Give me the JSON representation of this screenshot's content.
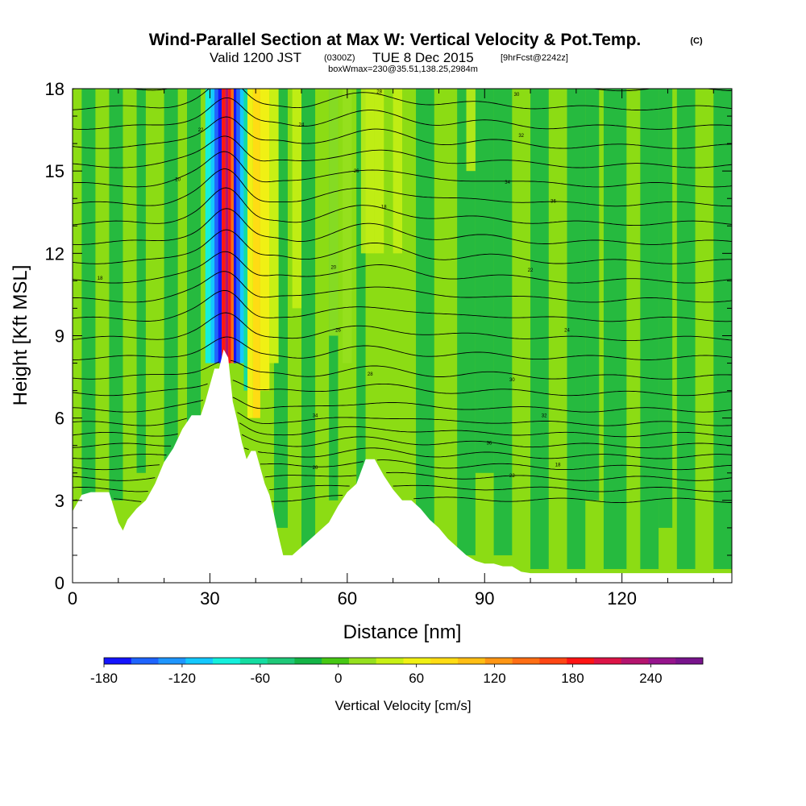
{
  "header": {
    "title": "Wind-Parallel Section at Max W: Vertical Velocity & Pot.Temp.",
    "copyright": "(C)",
    "valid_prefix": "Valid 1200 JST",
    "valid_utc": "(0300Z)",
    "valid_date": "TUE 8 Dec 2015",
    "forecast": "[9hrFcst@2242z]",
    "boxwmax": "boxWmax=230@35.51,138.25,2984m"
  },
  "chart_data": {
    "type": "heatmap",
    "title": "Wind-Parallel Section at Max W: Vertical Velocity & Pot.Temp.",
    "xlabel": "Distance [nm]",
    "ylabel": "Height [Kft MSL]",
    "xlim": [
      0,
      144
    ],
    "ylim": [
      0,
      18
    ],
    "x_ticks": [
      0,
      30,
      60,
      90,
      120
    ],
    "y_ticks": [
      0,
      3,
      6,
      9,
      12,
      15,
      18
    ],
    "colorbar": {
      "label": "Vertical Velocity [cm/s]",
      "min": -180,
      "max": 260,
      "step": 20,
      "tick_values": [
        -180,
        -120,
        -60,
        0,
        60,
        120,
        180,
        240
      ],
      "tick_labels": [
        "-180",
        "-120",
        "-60",
        "0",
        "60",
        "120",
        "180",
        "240"
      ],
      "colors": [
        "#1414ff",
        "#1e64ff",
        "#1e96ff",
        "#14c8ff",
        "#14f0dc",
        "#14dca0",
        "#1ec878",
        "#14b446",
        "#46c814",
        "#96e01e",
        "#c8f014",
        "#f0f014",
        "#ffdc14",
        "#ffbe14",
        "#ff9614",
        "#ff6e14",
        "#ff4614",
        "#ff1414",
        "#dc1446",
        "#b4146e",
        "#96148c",
        "#78148c"
      ]
    },
    "terrain_kft": [
      [
        0,
        2.6
      ],
      [
        2,
        3.2
      ],
      [
        4,
        3.3
      ],
      [
        8,
        3.3
      ],
      [
        10,
        2.2
      ],
      [
        11,
        1.9
      ],
      [
        12,
        2.3
      ],
      [
        14,
        2.7
      ],
      [
        16,
        3.0
      ],
      [
        18,
        3.6
      ],
      [
        20,
        4.4
      ],
      [
        22,
        4.9
      ],
      [
        24,
        5.6
      ],
      [
        26,
        6.1
      ],
      [
        28,
        6.1
      ],
      [
        29,
        6.6
      ],
      [
        30,
        7.2
      ],
      [
        31,
        7.8
      ],
      [
        32,
        7.8
      ],
      [
        33,
        8.5
      ],
      [
        34,
        8.2
      ],
      [
        35,
        6.6
      ],
      [
        36,
        5.9
      ],
      [
        37,
        5.1
      ],
      [
        38,
        4.5
      ],
      [
        39,
        4.8
      ],
      [
        40,
        4.8
      ],
      [
        41,
        4.2
      ],
      [
        42,
        3.6
      ],
      [
        43,
        3.2
      ],
      [
        44,
        2.5
      ],
      [
        45,
        1.7
      ],
      [
        46,
        1.0
      ],
      [
        48,
        1.0
      ],
      [
        50,
        1.3
      ],
      [
        52,
        1.6
      ],
      [
        54,
        1.9
      ],
      [
        56,
        2.2
      ],
      [
        58,
        2.8
      ],
      [
        60,
        3.3
      ],
      [
        62,
        3.6
      ],
      [
        64,
        4.5
      ],
      [
        66,
        4.5
      ],
      [
        68,
        3.9
      ],
      [
        70,
        3.4
      ],
      [
        72,
        3.0
      ],
      [
        74,
        3.0
      ],
      [
        76,
        2.7
      ],
      [
        78,
        2.3
      ],
      [
        80,
        2.0
      ],
      [
        82,
        1.6
      ],
      [
        84,
        1.3
      ],
      [
        86,
        1.0
      ],
      [
        88,
        0.8
      ],
      [
        90,
        0.7
      ],
      [
        92,
        0.7
      ],
      [
        94,
        0.6
      ],
      [
        96,
        0.6
      ],
      [
        98,
        0.4
      ],
      [
        100,
        0.35
      ],
      [
        144,
        0.35
      ]
    ],
    "theta_levels": [
      [
        3.0,
        0.22
      ],
      [
        3.4,
        0.25
      ],
      [
        3.8,
        0.28
      ],
      [
        4.2,
        0.3
      ],
      [
        4.6,
        0.32
      ],
      [
        5.0,
        0.35
      ],
      [
        5.4,
        0.37
      ],
      [
        5.8,
        0.38
      ],
      [
        6.3,
        0.4
      ],
      [
        6.9,
        0.42
      ],
      [
        7.5,
        0.45
      ],
      [
        8.2,
        0.5
      ],
      [
        8.9,
        0.6
      ],
      [
        9.6,
        0.7
      ],
      [
        10.3,
        0.75
      ],
      [
        11.0,
        0.8
      ],
      [
        11.7,
        0.85
      ],
      [
        12.4,
        0.85
      ],
      [
        13.1,
        0.85
      ],
      [
        13.8,
        0.85
      ],
      [
        14.5,
        0.85
      ],
      [
        15.2,
        0.8
      ],
      [
        15.9,
        0.8
      ],
      [
        16.6,
        0.75
      ],
      [
        17.3,
        0.7
      ],
      [
        18.0,
        0.7
      ]
    ],
    "contour_labels": [
      "18",
      "20",
      "22",
      "24",
      "26",
      "28",
      "30",
      "32",
      "34",
      "36"
    ],
    "series_note": ""
  }
}
